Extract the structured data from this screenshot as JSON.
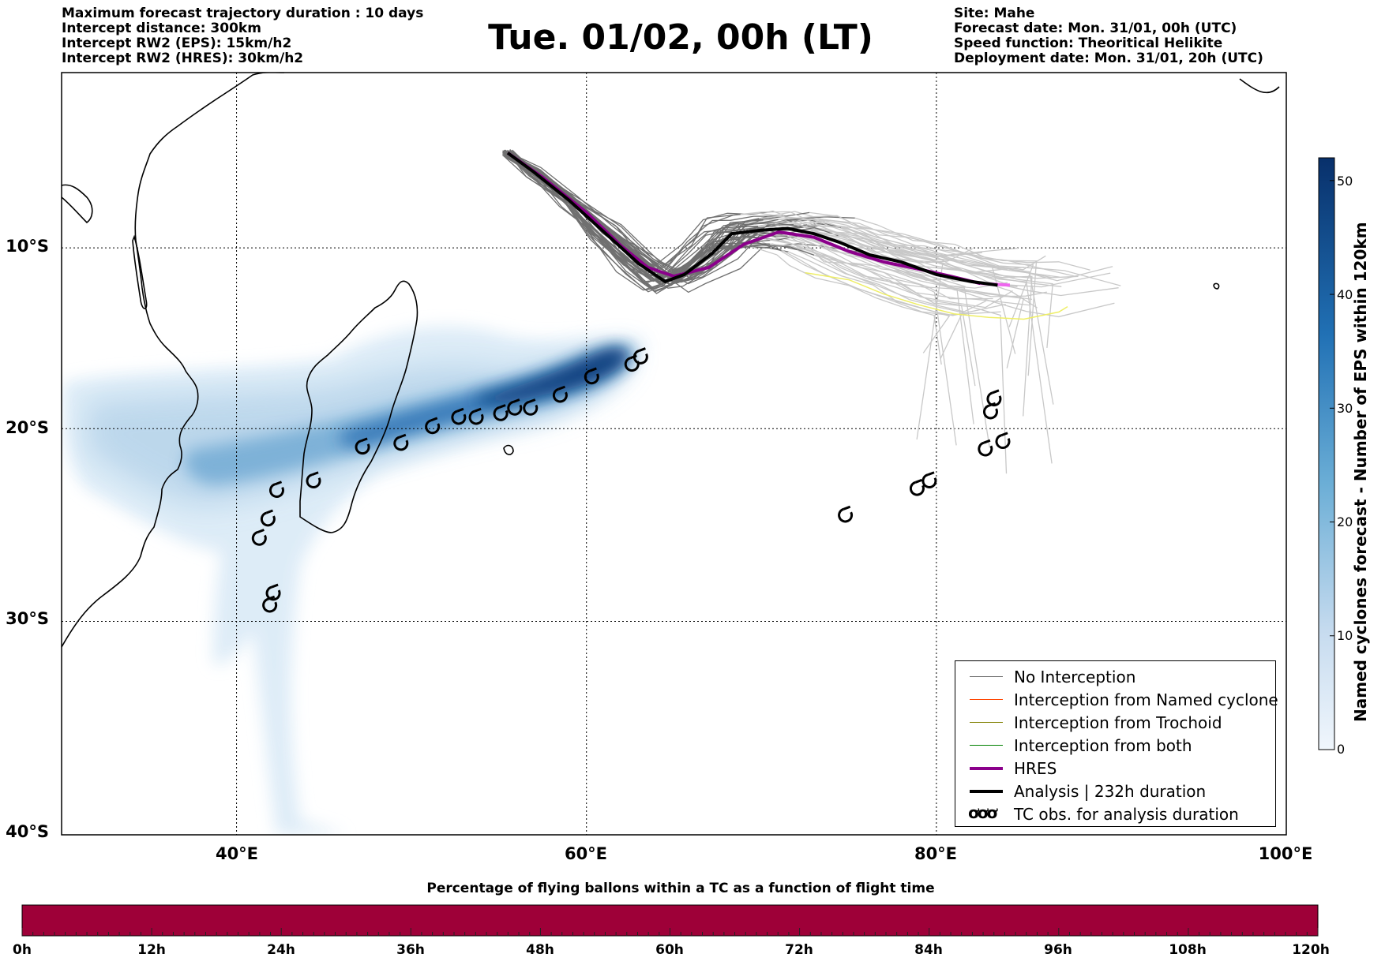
{
  "header": {
    "left_lines": [
      "Maximum forecast trajectory duration : 10 days",
      "Intercept distance: 300km",
      "Intercept RW2 (EPS):  15km/h2",
      "Intercept RW2 (HRES): 30km/h2"
    ],
    "title": "Tue. 01/02, 00h (LT)",
    "right_lines": [
      "Site: Mahe",
      "Forecast date: Mon. 31/01, 00h (UTC)",
      "Speed function: Theoritical Helikite",
      "Deployment date: Mon. 31/01, 20h (UTC)"
    ]
  },
  "map": {
    "lat_labels": [
      {
        "lat": -10,
        "label": "10°S"
      },
      {
        "lat": -20,
        "label": "20°S"
      },
      {
        "lat": -30,
        "label": "30°S"
      },
      {
        "lat": -40,
        "label": "40°S"
      }
    ],
    "lon_labels": [
      {
        "lon": 40,
        "label": "40°E"
      },
      {
        "lon": 60,
        "label": "60°E"
      },
      {
        "lon": 80,
        "label": "80°E"
      },
      {
        "lon": 100,
        "label": "100°E"
      }
    ],
    "extent": {
      "lon_min": 30,
      "lon_max": 100,
      "lat_min": -40,
      "lat_max": 0
    },
    "grid": "dotted",
    "colors": {
      "no_interception": "#707070",
      "light_tracks": "#c8c8c8",
      "hres": "#8b008b",
      "hres_extension": "#ee66ee",
      "analysis": "#000000",
      "trochoid_alt": "#eeee66",
      "density": "#08306b"
    },
    "launch_site": {
      "lon": 55.5,
      "lat": -4.6
    },
    "analysis_track": [
      [
        55.5,
        -4.6
      ],
      [
        57,
        -5.7
      ],
      [
        59,
        -7.3
      ],
      [
        61,
        -9.1
      ],
      [
        63,
        -10.9
      ],
      [
        64.5,
        -11.9
      ],
      [
        65.6,
        -11.5
      ],
      [
        67.2,
        -10.3
      ],
      [
        68.3,
        -9.2
      ],
      [
        70,
        -9.0
      ],
      [
        71.5,
        -8.9
      ],
      [
        73,
        -9.2
      ],
      [
        74.5,
        -9.7
      ],
      [
        76.2,
        -10.4
      ],
      [
        78,
        -10.8
      ],
      [
        80,
        -11.5
      ],
      [
        82,
        -11.9
      ],
      [
        83.5,
        -12.1
      ]
    ],
    "hres_track": [
      [
        55.5,
        -4.6
      ],
      [
        57.5,
        -6
      ],
      [
        60,
        -8
      ],
      [
        62,
        -9.9
      ],
      [
        63.5,
        -11.1
      ],
      [
        65,
        -11.6
      ],
      [
        67,
        -11.1
      ],
      [
        69,
        -9.8
      ],
      [
        71,
        -9.1
      ],
      [
        73,
        -9.4
      ],
      [
        75,
        -10.2
      ],
      [
        77,
        -10.8
      ],
      [
        79,
        -11.2
      ],
      [
        80.8,
        -11.6
      ],
      [
        82.5,
        -12
      ]
    ],
    "hres_extension": [
      [
        71,
        -9.1
      ],
      [
        73,
        -9.4
      ],
      [
        75,
        -10.2
      ],
      [
        77,
        -10.8
      ],
      [
        79,
        -11.2
      ],
      [
        80.8,
        -11.6
      ],
      [
        82.5,
        -12
      ],
      [
        84.2,
        -12.1
      ]
    ],
    "tc_obs": [
      [
        41.3,
        -25.8
      ],
      [
        41.8,
        -24.8
      ],
      [
        42.3,
        -23.3
      ],
      [
        44.4,
        -22.8
      ],
      [
        47.2,
        -21.0
      ],
      [
        49.4,
        -20.8
      ],
      [
        51.2,
        -19.9
      ],
      [
        52.7,
        -19.4
      ],
      [
        53.7,
        -19.4
      ],
      [
        55.1,
        -19.2
      ],
      [
        55.9,
        -18.9
      ],
      [
        56.8,
        -18.9
      ],
      [
        58.5,
        -18.2
      ],
      [
        60.3,
        -17.2
      ],
      [
        62.6,
        -16.5
      ],
      [
        63.1,
        -16.1
      ],
      [
        42.1,
        -28.6
      ],
      [
        41.9,
        -29.2
      ],
      [
        83.3,
        -18.4
      ],
      [
        83.1,
        -19.1
      ],
      [
        82.8,
        -21.1
      ],
      [
        83.8,
        -20.7
      ],
      [
        78.9,
        -23.2
      ],
      [
        79.6,
        -22.8
      ],
      [
        74.8,
        -24.6
      ]
    ]
  },
  "legend": {
    "items": [
      {
        "label": "No Interception",
        "color": "#707070",
        "style": "thin"
      },
      {
        "label": "Interception from Named cyclone",
        "color": "#ff4500",
        "style": "thin"
      },
      {
        "label": "Interception from Trochoid",
        "color": "#808000",
        "style": "thin"
      },
      {
        "label": "Interception from both",
        "color": "#008000",
        "style": "thin"
      },
      {
        "label": "HRES",
        "color": "#8b008b",
        "style": "thick"
      },
      {
        "label": "Analysis | 232h duration",
        "color": "#000000",
        "style": "thick"
      },
      {
        "label": "TC obs. for analysis duration",
        "color": "#000000",
        "style": "symbol"
      }
    ]
  },
  "colorbar_vertical": {
    "title": "Named cyclones forecast - Number of EPS within 120km",
    "ticks": [
      0,
      10,
      20,
      30,
      40,
      50
    ],
    "max": 52,
    "color_low": "#e8f1fa",
    "color_high": "#08306b"
  },
  "colorbar_horizontal": {
    "title": "Percentage of flying ballons within a TC as a function of flight time",
    "ticks": [
      "0h",
      "12h",
      "24h",
      "36h",
      "48h",
      "60h",
      "72h",
      "84h",
      "96h",
      "108h",
      "120h"
    ],
    "color": "#9e0038"
  }
}
